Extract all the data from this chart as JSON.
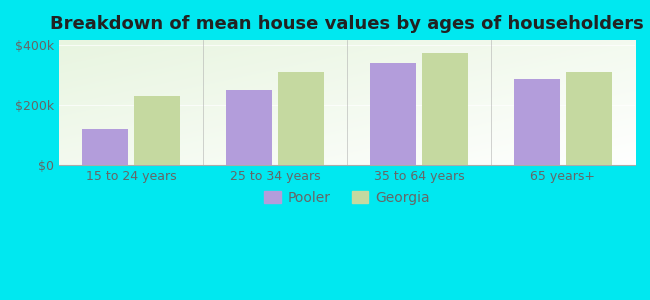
{
  "title": "Breakdown of mean house values by ages of householders",
  "categories": [
    "15 to 24 years",
    "25 to 34 years",
    "35 to 64 years",
    "65 years+"
  ],
  "pooler_values": [
    120000,
    248000,
    338000,
    285000
  ],
  "georgia_values": [
    228000,
    308000,
    372000,
    310000
  ],
  "pooler_color": "#b39ddb",
  "georgia_color": "#c5d9a0",
  "background_color": "#00e8f0",
  "plot_bg_color": "#e8f5e0",
  "yticks": [
    0,
    200000,
    400000
  ],
  "ytick_labels": [
    "$0",
    "$200k",
    "$400k"
  ],
  "ylim": [
    0,
    415000
  ],
  "bar_width": 0.32,
  "legend_pooler": "Pooler",
  "legend_georgia": "Georgia",
  "title_fontsize": 13,
  "tick_fontsize": 9,
  "legend_fontsize": 10
}
